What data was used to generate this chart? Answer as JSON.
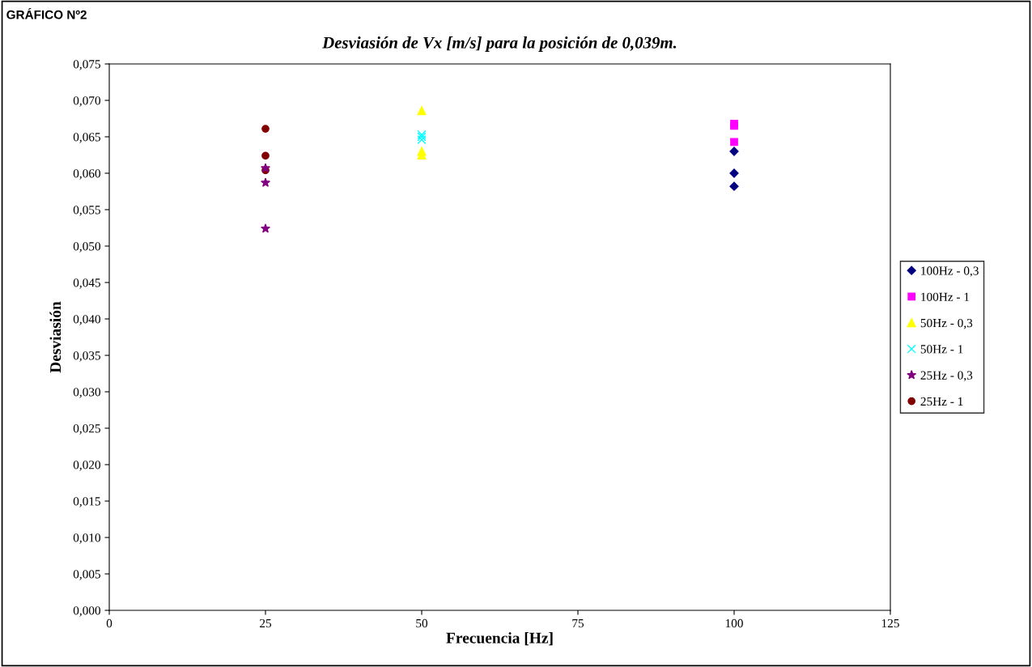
{
  "chart_data": {
    "type": "scatter",
    "title": "Desviasión de Vx [m/s] para la posición de 0,039m.",
    "xlabel": "Frecuencia [Hz]",
    "ylabel": "Desviasión",
    "annotations": [
      "GRÁFICO Nº2"
    ],
    "xlim": [
      0,
      125
    ],
    "xticks": [
      0,
      25,
      50,
      75,
      100,
      125
    ],
    "ylim": [
      0,
      0.075
    ],
    "yticks": [
      {
        "value": 0,
        "label": "0,000"
      },
      {
        "value": 0.005,
        "label": "0,005"
      },
      {
        "value": 0.01,
        "label": "0,010"
      },
      {
        "value": 0.015,
        "label": "0,015"
      },
      {
        "value": 0.02,
        "label": "0,020"
      },
      {
        "value": 0.025,
        "label": "0,025"
      },
      {
        "value": 0.03,
        "label": "0,030"
      },
      {
        "value": 0.035,
        "label": "0,035"
      },
      {
        "value": 0.04,
        "label": "0,040"
      },
      {
        "value": 0.045,
        "label": "0,045"
      },
      {
        "value": 0.05,
        "label": "0,050"
      },
      {
        "value": 0.055,
        "label": "0,055"
      },
      {
        "value": 0.06,
        "label": "0,060"
      },
      {
        "value": 0.065,
        "label": "0,065"
      },
      {
        "value": 0.07,
        "label": "0,070"
      },
      {
        "value": 0.075,
        "label": "0,075"
      }
    ],
    "grid": false,
    "legend": "right",
    "series": [
      {
        "name": "100Hz - 0,3",
        "color": "#000080",
        "marker": "diamond",
        "x": [
          100,
          100,
          100
        ],
        "values": [
          0.063,
          0.06,
          0.0582
        ]
      },
      {
        "name": "100Hz - 1",
        "color": "#ff00ff",
        "marker": "square",
        "x": [
          100,
          100,
          100
        ],
        "values": [
          0.0668,
          0.0665,
          0.0643
        ]
      },
      {
        "name": "50Hz - 0,3",
        "color": "#ffff00",
        "marker": "triangle",
        "x": [
          50,
          50,
          50
        ],
        "values": [
          0.0686,
          0.063,
          0.0625
        ]
      },
      {
        "name": "50Hz - 1",
        "color": "#00ffff",
        "marker": "cross",
        "x": [
          50,
          50,
          50
        ],
        "values": [
          0.0653,
          0.065,
          0.0646
        ]
      },
      {
        "name": "25Hz - 0,3",
        "color": "#800080",
        "marker": "star",
        "x": [
          25,
          25,
          25
        ],
        "values": [
          0.0607,
          0.0587,
          0.0524
        ]
      },
      {
        "name": "25Hz - 1",
        "color": "#800000",
        "marker": "circle",
        "x": [
          25,
          25,
          25
        ],
        "values": [
          0.0661,
          0.0624,
          0.0604
        ]
      }
    ]
  }
}
